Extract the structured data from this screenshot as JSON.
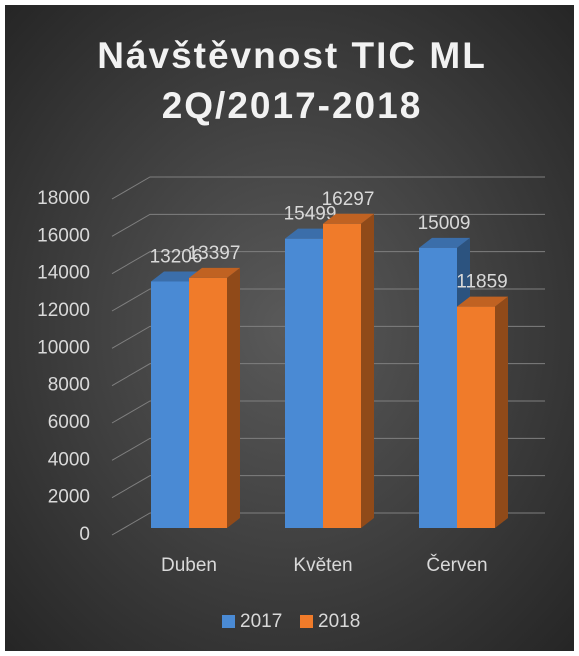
{
  "chart_data": {
    "type": "bar3d",
    "title": [
      "Návštěvnost TIC ML",
      "2Q/2017-2018"
    ],
    "categories": [
      "Duben",
      "Květen",
      "Červen"
    ],
    "series": [
      {
        "name": "2017",
        "color": "#4a8ad4",
        "values": [
          13206,
          15499,
          15009
        ]
      },
      {
        "name": "2018",
        "color": "#f07b2a",
        "values": [
          13397,
          16297,
          11859
        ]
      }
    ],
    "ylim": [
      0,
      18000
    ],
    "yticks": [
      0,
      2000,
      4000,
      6000,
      8000,
      10000,
      12000,
      14000,
      16000,
      18000
    ],
    "grid": true,
    "legend": "bottom"
  }
}
